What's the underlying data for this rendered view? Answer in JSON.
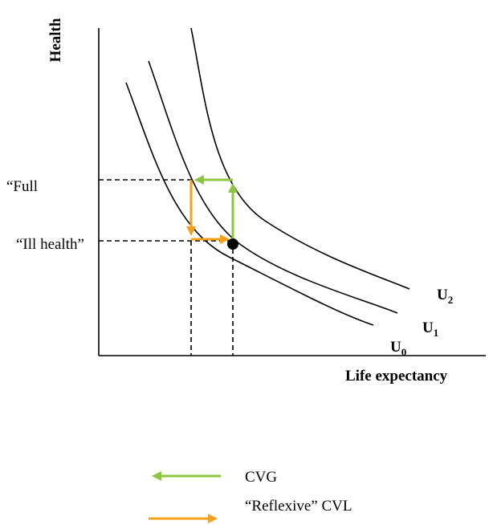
{
  "axes": {
    "y_label": "Health",
    "x_label": "Life expectancy"
  },
  "levels": [
    "“Full",
    "“Ill health”"
  ],
  "curves": [
    {
      "letter": "U",
      "subscript": "0"
    },
    {
      "letter": "U",
      "subscript": "1"
    },
    {
      "letter": "U",
      "subscript": "2"
    }
  ],
  "legend": [
    "CVG",
    "“Reflexive” CVL"
  ]
}
